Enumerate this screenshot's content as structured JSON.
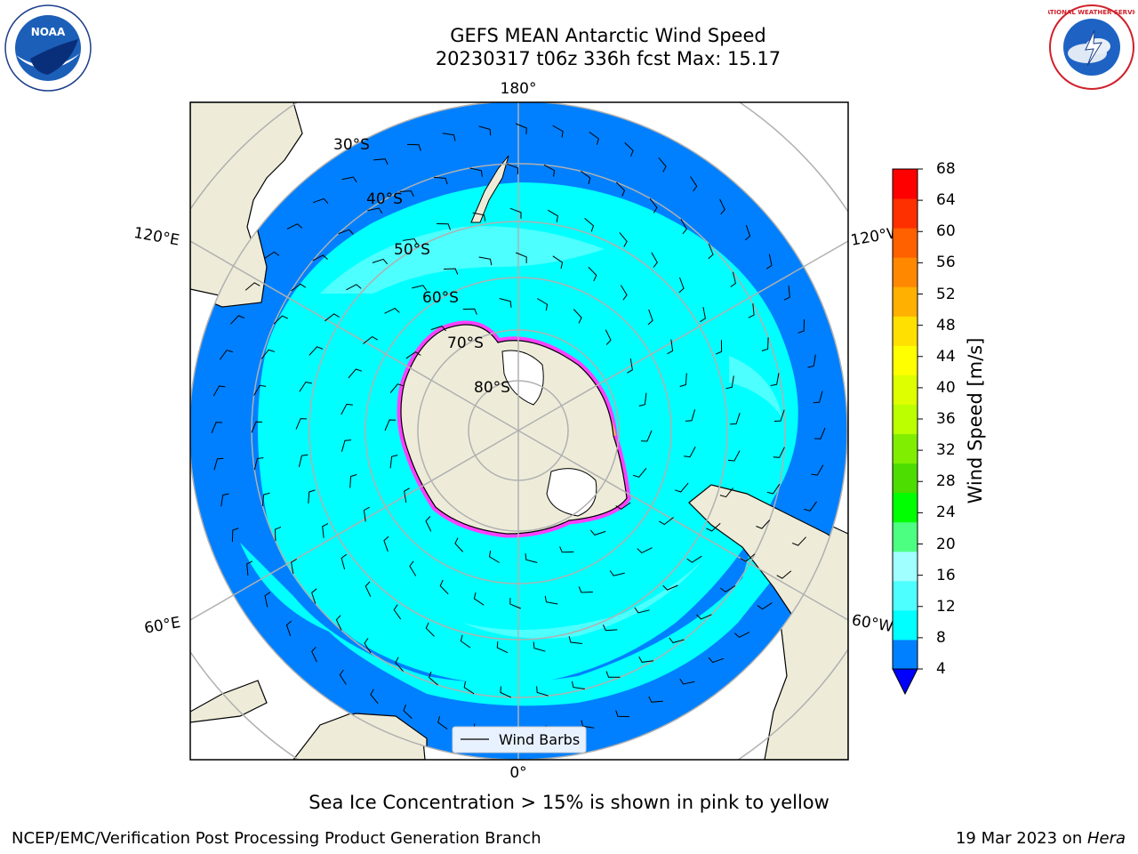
{
  "title": {
    "line1": "GEFS MEAN Antarctic Wind Speed",
    "line2": "20230317 t06z 336h fcst   Max: 15.17"
  },
  "map": {
    "projection": "south-polar-stereographic",
    "meridian_labels": {
      "top": "180°",
      "bottom": "0°",
      "upper_left": "120°E",
      "upper_right": "120°W",
      "lower_left": "60°E",
      "lower_right": "60°W"
    },
    "latitude_labels": [
      "30°S",
      "40°S",
      "50°S",
      "60°S",
      "70°S",
      "80°S"
    ],
    "legend": {
      "label": "Wind Barbs"
    },
    "colors": {
      "land": "#eeecd9",
      "ocean_low": "#0080ff",
      "ocean_mid": "#00ffff",
      "ocean_high": "#4dffff",
      "grid": "#b0b0b0"
    }
  },
  "colorbar": {
    "label": "Wind Speed [m/s]",
    "ticks": [
      "4",
      "8",
      "12",
      "16",
      "20",
      "24",
      "28",
      "32",
      "36",
      "40",
      "44",
      "48",
      "52",
      "56",
      "60",
      "64",
      "68"
    ],
    "colors": [
      "#0080ff",
      "#00ffff",
      "#4dffff",
      "#a0ffff",
      "#4dff80",
      "#00ff00",
      "#4ddd00",
      "#80ee00",
      "#bbff00",
      "#ddff00",
      "#ffff00",
      "#ffe000",
      "#ffb000",
      "#ff8800",
      "#ff6000",
      "#ff3000",
      "#ff0000"
    ],
    "under_color": "#0000ff"
  },
  "caption": "Sea Ice Concentration > 15% is shown in pink to yellow",
  "footer": {
    "credit": "NCEP/EMC/Verification Post Processing Product Generation Branch",
    "date": "19 Mar 2023 on ",
    "system": "Hera"
  },
  "logos": {
    "left": "NOAA",
    "right": "NATIONAL WEATHER SERVICE"
  }
}
